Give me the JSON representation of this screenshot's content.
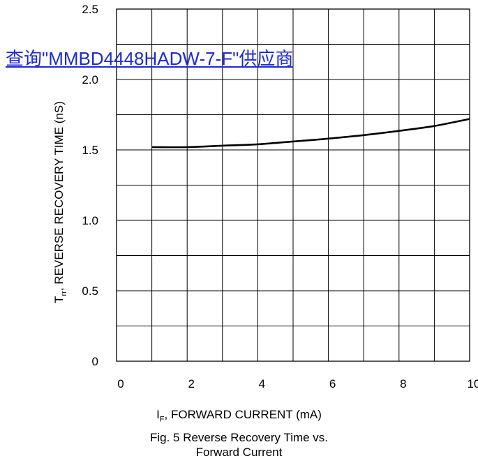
{
  "watermark": {
    "text": "查询\"MMBD4448HADW-7-F\"供应商",
    "color": "#1d2ad6"
  },
  "figure": {
    "caption_line1": "Fig. 5  Reverse Recovery Time vs.",
    "caption_line2": "Forward Current"
  },
  "chart_data": {
    "type": "line",
    "title": "",
    "xlabel": "I",
    "xlabel_sub": "F",
    "xlabel_rest": ", FORWARD CURRENT (mA)",
    "ylabel": "T",
    "ylabel_sub": "rr",
    "ylabel_rest": ", REVERSE RECOVERY TIME (nS)",
    "xlim": [
      0,
      10
    ],
    "ylim": [
      0,
      2.5
    ],
    "x_ticks": [
      "0",
      "2",
      "4",
      "6",
      "8",
      "10"
    ],
    "y_ticks": [
      "0",
      "0.5",
      "1.0",
      "1.5",
      "2.0",
      "2.5"
    ],
    "grid": true,
    "grid_step_x": 1,
    "grid_step_y": 0.25,
    "line_color": "#000000",
    "series": [
      {
        "x": [
          1,
          2,
          3,
          4,
          5,
          6,
          7,
          8,
          9,
          10
        ],
        "y": [
          1.52,
          1.52,
          1.53,
          1.54,
          1.56,
          1.58,
          1.605,
          1.635,
          1.67,
          1.72
        ]
      }
    ]
  }
}
